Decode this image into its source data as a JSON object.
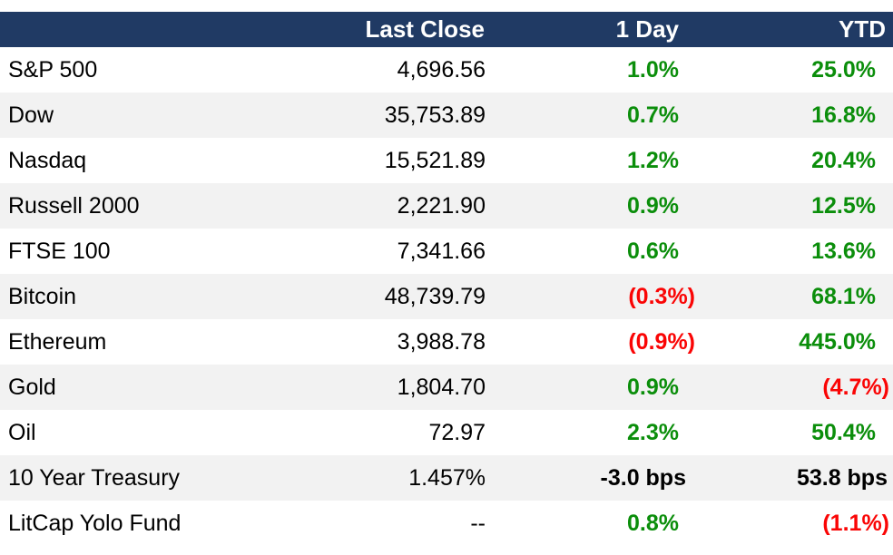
{
  "chart_data": {
    "type": "table",
    "title": "Market summary table",
    "columns": [
      "",
      "Last Close",
      "1 Day",
      "YTD"
    ],
    "rows": [
      {
        "name": "S&P 500",
        "last_close": "4,696.56",
        "one_day": "1.0%",
        "one_day_sign": "pos",
        "ytd": "25.0%",
        "ytd_sign": "pos"
      },
      {
        "name": "Dow",
        "last_close": "35,753.89",
        "one_day": "0.7%",
        "one_day_sign": "pos",
        "ytd": "16.8%",
        "ytd_sign": "pos"
      },
      {
        "name": "Nasdaq",
        "last_close": "15,521.89",
        "one_day": "1.2%",
        "one_day_sign": "pos",
        "ytd": "20.4%",
        "ytd_sign": "pos"
      },
      {
        "name": "Russell 2000",
        "last_close": "2,221.90",
        "one_day": "0.9%",
        "one_day_sign": "pos",
        "ytd": "12.5%",
        "ytd_sign": "pos"
      },
      {
        "name": "FTSE 100",
        "last_close": "7,341.66",
        "one_day": "0.6%",
        "one_day_sign": "pos",
        "ytd": "13.6%",
        "ytd_sign": "pos"
      },
      {
        "name": "Bitcoin",
        "last_close": "48,739.79",
        "one_day": "(0.3%)",
        "one_day_sign": "neg",
        "ytd": "68.1%",
        "ytd_sign": "pos"
      },
      {
        "name": "Ethereum",
        "last_close": "3,988.78",
        "one_day": "(0.9%)",
        "one_day_sign": "neg",
        "ytd": "445.0%",
        "ytd_sign": "pos"
      },
      {
        "name": "Gold",
        "last_close": "1,804.70",
        "one_day": "0.9%",
        "one_day_sign": "pos",
        "ytd": "(4.7%)",
        "ytd_sign": "neg"
      },
      {
        "name": "Oil",
        "last_close": "72.97",
        "one_day": "2.3%",
        "one_day_sign": "pos",
        "ytd": "50.4%",
        "ytd_sign": "pos"
      },
      {
        "name": "10 Year Treasury",
        "last_close": "1.457%",
        "one_day": "-3.0 bps",
        "one_day_sign": "bps",
        "ytd": "53.8 bps",
        "ytd_sign": "bps"
      },
      {
        "name": "LitCap Yolo Fund",
        "last_close": "--",
        "one_day": "0.8%",
        "one_day_sign": "pos",
        "ytd": "(1.1%)",
        "ytd_sign": "neg"
      }
    ]
  },
  "colors": {
    "header_bg": "#203A64",
    "header_text": "#FFFFFF",
    "row_bg": "#FFFFFF",
    "row_alt_bg": "#F2F2F2",
    "positive": "#0B8E0B",
    "negative": "#FA0505",
    "neutral_text": "#000000"
  }
}
